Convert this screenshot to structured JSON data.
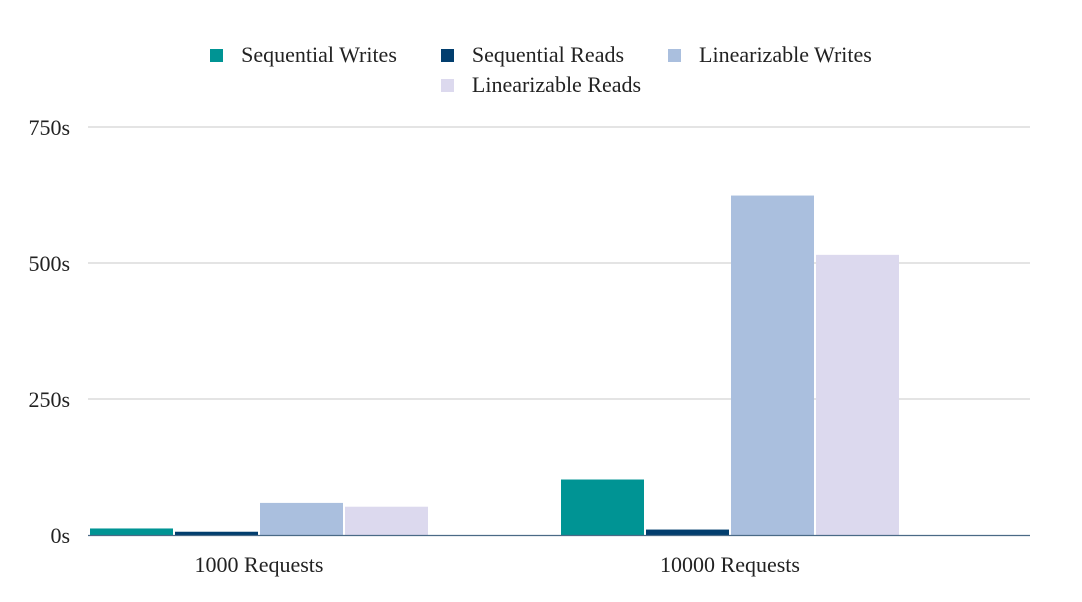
{
  "chart_data": {
    "type": "bar",
    "categories": [
      "1000 Requests",
      "10000 Requests"
    ],
    "series": [
      {
        "name": "Sequential Writes",
        "color": "#009494",
        "values": [
          12,
          102
        ]
      },
      {
        "name": "Sequential Reads",
        "color": "#023e6e",
        "values": [
          6,
          10
        ]
      },
      {
        "name": "Linearizable Writes",
        "color": "#aabfde",
        "values": [
          59,
          624
        ]
      },
      {
        "name": "Linearizable Reads",
        "color": "#dcd9ee",
        "values": [
          52,
          515
        ]
      }
    ],
    "y_ticks": [
      "0s",
      "250s",
      "500s",
      "750s"
    ],
    "ylim": [
      0,
      750
    ],
    "grid": true,
    "legend_position": "top-center"
  }
}
